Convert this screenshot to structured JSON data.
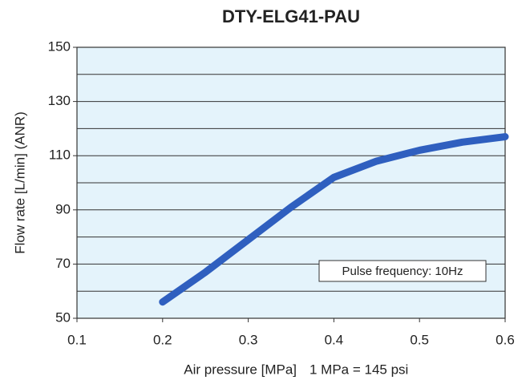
{
  "chart_data": {
    "type": "line",
    "title": "DTY-ELG41-PAU",
    "x_label": "Air pressure [MPa]",
    "x_note": "1 MPa = 145 psi",
    "y_label": "Flow rate [L/min] (ANR)",
    "annotation": "Pulse frequency: 10Hz",
    "x": [
      0.2,
      0.25,
      0.3,
      0.35,
      0.4,
      0.45,
      0.5,
      0.55,
      0.6
    ],
    "series": [
      {
        "name": "DTY-ELG41-PAU",
        "color": "#2f5fbf",
        "values": [
          56,
          67,
          79,
          91,
          102,
          108,
          112,
          115,
          117
        ]
      }
    ],
    "xlim": [
      0.1,
      0.6
    ],
    "xticks": [
      0.1,
      0.2,
      0.3,
      0.4,
      0.5,
      0.6
    ],
    "ylim": [
      50,
      150
    ],
    "yticks": [
      50,
      70,
      90,
      110,
      130,
      150
    ],
    "minor_yticks": [
      60,
      80,
      100,
      120,
      140
    ],
    "grid": true,
    "background": "#e4f3fb"
  }
}
